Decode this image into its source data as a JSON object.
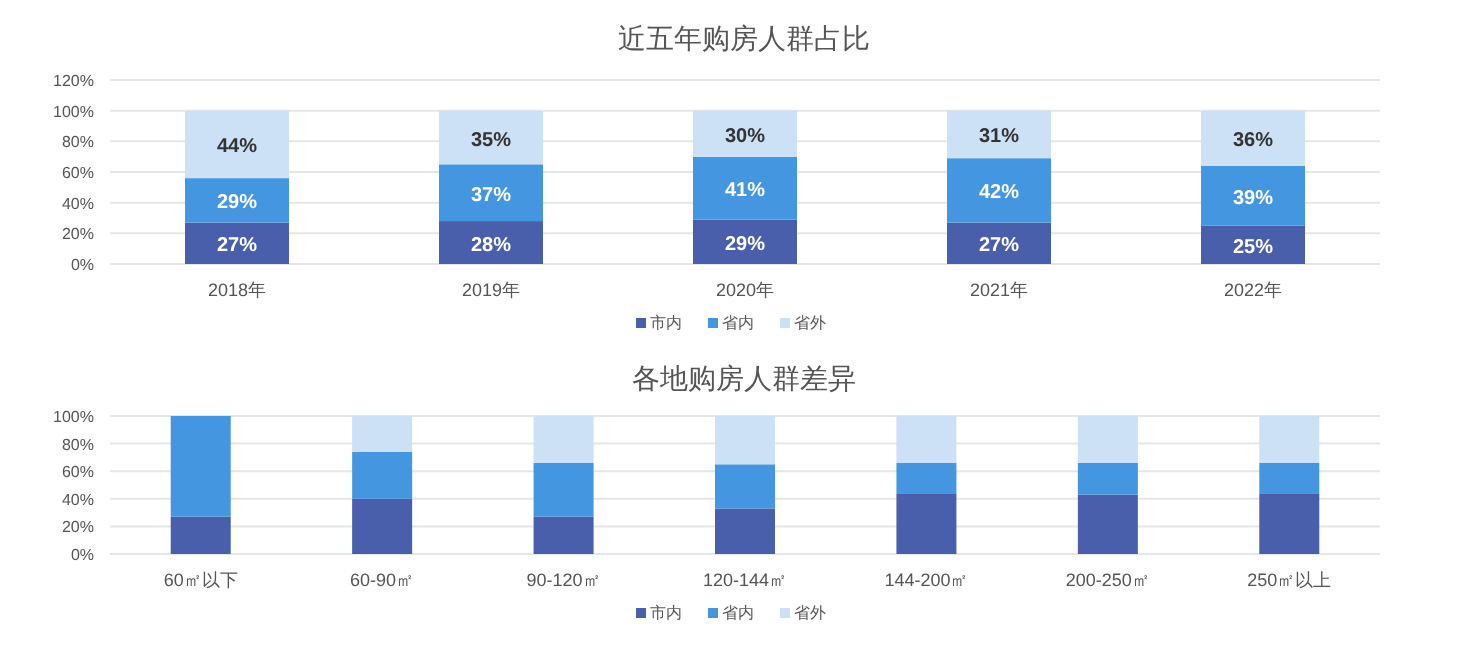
{
  "chart_data": [
    {
      "type": "bar",
      "title": "近五年购房人群占比",
      "stacked": true,
      "grid": "y",
      "legend": "bottom",
      "categories": [
        "2018年",
        "2019年",
        "2020年",
        "2021年",
        "2022年"
      ],
      "ylim": [
        0,
        120
      ],
      "yticks": [
        {
          "value": 0,
          "label": "0%"
        },
        {
          "value": 20,
          "label": "20%"
        },
        {
          "value": 40,
          "label": "40%"
        },
        {
          "value": 60,
          "label": "60%"
        },
        {
          "value": 80,
          "label": "80%"
        },
        {
          "value": 100,
          "label": "100%"
        },
        {
          "value": 120,
          "label": "120%"
        }
      ],
      "series": [
        {
          "name": "市内",
          "color": "#4a5fab",
          "values": [
            27,
            28,
            29,
            27,
            25
          ],
          "value_labels": [
            "27%",
            "28%",
            "29%",
            "27%",
            "25%"
          ]
        },
        {
          "name": "省内",
          "color": "#4596e0",
          "values": [
            29,
            37,
            41,
            42,
            39
          ],
          "value_labels": [
            "29%",
            "37%",
            "41%",
            "42%",
            "39%"
          ]
        },
        {
          "name": "省外",
          "color": "#cce0f6",
          "values": [
            44,
            35,
            30,
            31,
            36
          ],
          "value_labels": [
            "44%",
            "35%",
            "30%",
            "31%",
            "36%"
          ]
        }
      ]
    },
    {
      "type": "bar",
      "title": "各地购房人群差异",
      "stacked": true,
      "grid": "y",
      "legend": "bottom",
      "categories": [
        "60㎡以下",
        "60-90㎡",
        "90-120㎡",
        "120-144㎡",
        "144-200㎡",
        "200-250㎡",
        "250㎡以上"
      ],
      "ylim": [
        0,
        100
      ],
      "yticks": [
        {
          "value": 0,
          "label": "0%"
        },
        {
          "value": 20,
          "label": "20%"
        },
        {
          "value": 40,
          "label": "40%"
        },
        {
          "value": 60,
          "label": "60%"
        },
        {
          "value": 80,
          "label": "80%"
        },
        {
          "value": 100,
          "label": "100%"
        }
      ],
      "series": [
        {
          "name": "市内",
          "color": "#4a5fab",
          "values": [
            27,
            40,
            27,
            33,
            44,
            43,
            44
          ]
        },
        {
          "name": "省内",
          "color": "#4596e0",
          "values": [
            73,
            34,
            39,
            32,
            22,
            23,
            22
          ]
        },
        {
          "name": "省外",
          "color": "#cce0f6",
          "values": [
            0,
            26,
            34,
            35,
            34,
            34,
            34
          ]
        }
      ]
    }
  ]
}
